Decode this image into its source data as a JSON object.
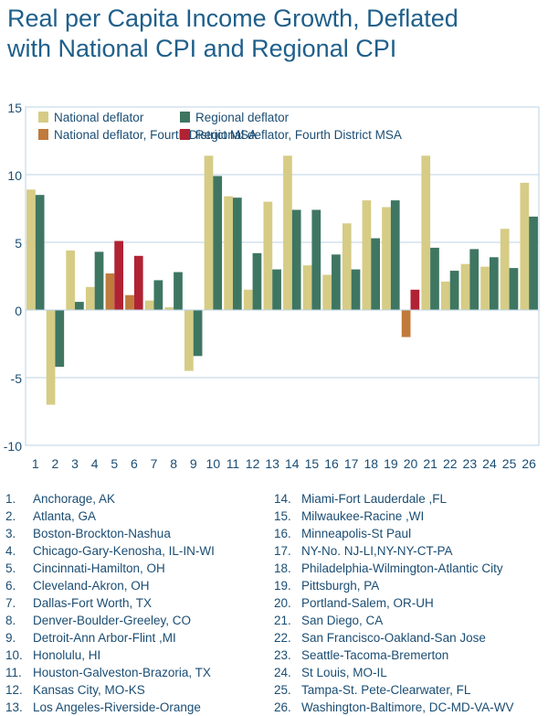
{
  "title_lines": [
    "Real per Capita Income Growth, Deflated",
    "with National CPI and Regional CPI"
  ],
  "chart_data": {
    "type": "bar",
    "title": "Real per Capita Income Growth, Deflated with National CPI and Regional CPI",
    "xlabel": "",
    "ylabel": "",
    "ylim": [
      -10,
      15
    ],
    "yticks": [
      15,
      10,
      5,
      0,
      -5,
      -10
    ],
    "ytick_labels": [
      "15",
      "10",
      "5",
      "0",
      "-5",
      "-10"
    ],
    "grid": true,
    "legend_position": "top",
    "categories": [
      "1",
      "2",
      "3",
      "4",
      "5",
      "6",
      "7",
      "8",
      "9",
      "10",
      "11",
      "12",
      "13",
      "14",
      "15",
      "16",
      "17",
      "18",
      "19",
      "20",
      "21",
      "22",
      "23",
      "24",
      "25",
      "26"
    ],
    "series": [
      {
        "name": "National deflator",
        "color": "#d6cc85",
        "values": [
          8.9,
          -7.0,
          4.4,
          1.7,
          null,
          null,
          0.7,
          0.2,
          -4.5,
          11.4,
          8.4,
          1.5,
          8.0,
          11.4,
          3.3,
          2.6,
          6.4,
          8.1,
          7.6,
          null,
          11.4,
          2.1,
          3.4,
          3.2,
          6.0,
          9.4
        ]
      },
      {
        "name": "Regional deflator",
        "color": "#3e7662",
        "values": [
          8.5,
          -4.2,
          0.6,
          4.3,
          null,
          null,
          2.2,
          2.8,
          -3.4,
          9.9,
          8.3,
          4.2,
          3.0,
          7.4,
          7.4,
          4.1,
          3.0,
          5.3,
          8.1,
          null,
          4.6,
          2.9,
          4.5,
          3.9,
          3.1,
          6.9
        ]
      },
      {
        "name": "National deflator, Fourth District MSA",
        "color": "#c07a3c",
        "values": [
          null,
          null,
          null,
          null,
          2.7,
          1.1,
          null,
          null,
          null,
          null,
          null,
          null,
          null,
          null,
          null,
          null,
          null,
          null,
          null,
          -2.0,
          null,
          null,
          null,
          null,
          null,
          null
        ]
      },
      {
        "name": "Regional deflator, Fourth District MSA",
        "color": "#b02334",
        "values": [
          null,
          null,
          null,
          null,
          5.1,
          4.0,
          null,
          null,
          null,
          null,
          null,
          null,
          null,
          null,
          null,
          null,
          null,
          null,
          null,
          1.5,
          null,
          null,
          null,
          null,
          null,
          null
        ]
      }
    ]
  },
  "areas": [
    "Anchorage, AK",
    "Atlanta, GA",
    "Boston-Brockton-Nashua",
    "Chicago-Gary-Kenosha, IL-IN-WI",
    "Cincinnati-Hamilton, OH",
    "Cleveland-Akron, OH",
    "Dallas-Fort Worth, TX",
    "Denver-Boulder-Greeley, CO",
    "Detroit-Ann Arbor-Flint ,MI",
    "Honolulu, HI",
    "Houston-Galveston-Brazoria, TX",
    "Kansas City, MO-KS",
    "Los Angeles-Riverside-Orange",
    "Miami-Fort Lauderdale ,FL",
    "Milwaukee-Racine ,WI",
    "Minneapolis-St Paul",
    "NY-No. NJ-LI,NY-NY-CT-PA",
    "Philadelphia-Wilmington-Atlantic City",
    "Pittsburgh, PA",
    "Portland-Salem, OR-UH",
    "San Diego, CA",
    "San Francisco-Oakland-San Jose",
    "Seattle-Tacoma-Bremerton",
    "St Louis, MO-IL",
    "Tampa-St. Pete-Clearwater, FL",
    "Washington-Baltimore, DC-MD-VA-WV"
  ]
}
